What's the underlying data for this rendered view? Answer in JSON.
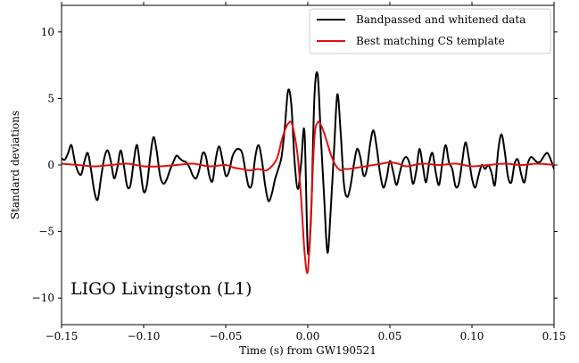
{
  "chart_data": {
    "type": "line",
    "xlabel": "Time (s) from GW190521",
    "ylabel": "Standard deviations",
    "xlim": [
      -0.15,
      0.15
    ],
    "ylim": [
      -12,
      12
    ],
    "xticks": [
      -0.15,
      -0.1,
      -0.05,
      0.0,
      0.05,
      0.1,
      0.15
    ],
    "xtick_labels": [
      "−0.15",
      "−0.10",
      "−0.05",
      "0.00",
      "0.05",
      "0.10",
      "0.15"
    ],
    "yticks": [
      -10,
      -5,
      0,
      5,
      10
    ],
    "ytick_labels": [
      "−10",
      "−5",
      "0",
      "5",
      "10"
    ],
    "grid": false,
    "legend_position": "top-right",
    "annotation": "LIGO Livingston (L1)",
    "series": [
      {
        "name": "Bandpassed and whitened data",
        "color": "#000000",
        "x": [
          -0.15,
          -0.148,
          -0.146,
          -0.144,
          -0.142,
          -0.14,
          -0.138,
          -0.136,
          -0.134,
          -0.132,
          -0.13,
          -0.128,
          -0.126,
          -0.124,
          -0.122,
          -0.12,
          -0.118,
          -0.116,
          -0.114,
          -0.112,
          -0.11,
          -0.108,
          -0.106,
          -0.104,
          -0.102,
          -0.1,
          -0.098,
          -0.096,
          -0.094,
          -0.092,
          -0.09,
          -0.088,
          -0.086,
          -0.084,
          -0.082,
          -0.08,
          -0.078,
          -0.076,
          -0.074,
          -0.072,
          -0.07,
          -0.068,
          -0.066,
          -0.064,
          -0.062,
          -0.06,
          -0.058,
          -0.056,
          -0.054,
          -0.052,
          -0.05,
          -0.048,
          -0.046,
          -0.044,
          -0.042,
          -0.04,
          -0.038,
          -0.036,
          -0.034,
          -0.032,
          -0.03,
          -0.028,
          -0.026,
          -0.024,
          -0.022,
          -0.02,
          -0.018,
          -0.016,
          -0.014,
          -0.012,
          -0.01,
          -0.008,
          -0.006,
          -0.004,
          -0.002,
          0.0,
          0.002,
          0.004,
          0.006,
          0.008,
          0.01,
          0.012,
          0.014,
          0.016,
          0.018,
          0.02,
          0.022,
          0.024,
          0.026,
          0.028,
          0.03,
          0.032,
          0.034,
          0.036,
          0.038,
          0.04,
          0.042,
          0.044,
          0.046,
          0.048,
          0.05,
          0.052,
          0.054,
          0.056,
          0.058,
          0.06,
          0.062,
          0.064,
          0.066,
          0.068,
          0.07,
          0.072,
          0.074,
          0.076,
          0.078,
          0.08,
          0.082,
          0.084,
          0.086,
          0.088,
          0.09,
          0.092,
          0.094,
          0.096,
          0.098,
          0.1,
          0.102,
          0.104,
          0.106,
          0.108,
          0.11,
          0.112,
          0.114,
          0.116,
          0.118,
          0.12,
          0.122,
          0.124,
          0.126,
          0.128,
          0.13,
          0.132,
          0.134,
          0.136,
          0.138,
          0.14,
          0.142,
          0.144,
          0.146,
          0.148,
          0.15
        ],
        "y": [
          0.5,
          0.4,
          0.9,
          1.5,
          0.3,
          -0.5,
          -0.7,
          0.3,
          0.9,
          -0.4,
          -2.0,
          -2.6,
          -1.0,
          0.5,
          1.1,
          0.3,
          -1.0,
          -0.2,
          1.1,
          -0.1,
          -1.6,
          -1.5,
          0.3,
          1.5,
          -0.3,
          -2.0,
          -1.5,
          0.6,
          2.1,
          1.0,
          -0.8,
          -1.4,
          -1.1,
          -0.4,
          0.2,
          0.7,
          0.5,
          0.3,
          0.2,
          -0.2,
          -0.8,
          -1.0,
          -0.3,
          0.9,
          0.6,
          -0.8,
          -1.2,
          0.5,
          1.4,
          0.4,
          -0.8,
          -0.5,
          0.6,
          1.1,
          1.2,
          0.9,
          -0.4,
          -1.6,
          -1.4,
          0.6,
          1.5,
          0.4,
          -1.5,
          -2.7,
          -2.2,
          -1.1,
          -0.3,
          0.6,
          2.8,
          5.6,
          4.5,
          0.2,
          -1.8,
          0.2,
          2.5,
          -6.4,
          -3.9,
          5.0,
          6.8,
          2.0,
          -2.5,
          -6.6,
          -3.3,
          1.1,
          5.3,
          2.5,
          -1.4,
          -2.4,
          -1.6,
          0.0,
          1.2,
          0.6,
          -0.8,
          -0.3,
          1.6,
          2.6,
          1.3,
          -0.6,
          -1.7,
          -1.0,
          0.3,
          -0.5,
          -1.5,
          -0.6,
          0.3,
          0.6,
          0.1,
          -1.4,
          -0.5,
          1.2,
          0.0,
          -1.3,
          0.2,
          0.9,
          -0.6,
          -1.5,
          0.2,
          1.5,
          0.2,
          -0.3,
          -1.6,
          -1.4,
          0.2,
          1.7,
          0.6,
          -1.0,
          -1.7,
          -0.8,
          0.0,
          -0.3,
          0.0,
          -0.6,
          -1.5,
          1.1,
          2.3,
          1.0,
          -0.9,
          -1.3,
          0.1,
          0.4,
          -0.7,
          -1.3,
          0.1,
          0.6,
          0.4,
          0.2,
          0.3,
          0.7,
          0.9,
          0.4,
          -0.3
        ]
      },
      {
        "name": "Best matching CS template",
        "color": "#e01010",
        "x": [
          -0.15,
          -0.14,
          -0.13,
          -0.12,
          -0.11,
          -0.1,
          -0.09,
          -0.08,
          -0.07,
          -0.06,
          -0.05,
          -0.045,
          -0.04,
          -0.035,
          -0.03,
          -0.025,
          -0.02,
          -0.018,
          -0.016,
          -0.014,
          -0.012,
          -0.01,
          -0.008,
          -0.006,
          -0.004,
          -0.002,
          0.0,
          0.002,
          0.004,
          0.006,
          0.008,
          0.01,
          0.012,
          0.014,
          0.016,
          0.018,
          0.02,
          0.022,
          0.025,
          0.03,
          0.035,
          0.04,
          0.045,
          0.05,
          0.055,
          0.06,
          0.07,
          0.08,
          0.09,
          0.1,
          0.11,
          0.12,
          0.13,
          0.14,
          0.15
        ],
        "y": [
          0.1,
          0.0,
          -0.1,
          0.0,
          0.1,
          -0.1,
          -0.1,
          0.0,
          0.1,
          -0.1,
          0.0,
          -0.2,
          -0.3,
          -0.4,
          -0.3,
          -0.4,
          0.2,
          0.8,
          1.8,
          2.6,
          3.1,
          3.2,
          2.2,
          0.5,
          -2.6,
          -6.5,
          -8.0,
          -3.5,
          2.0,
          3.2,
          3.0,
          2.4,
          1.6,
          0.8,
          0.2,
          -0.2,
          -0.4,
          -0.3,
          -0.3,
          -0.2,
          -0.1,
          0.0,
          0.1,
          0.2,
          0.1,
          -0.1,
          0.1,
          0.0,
          0.1,
          -0.1,
          0.0,
          0.1,
          0.0,
          0.1,
          0.0
        ]
      }
    ]
  }
}
